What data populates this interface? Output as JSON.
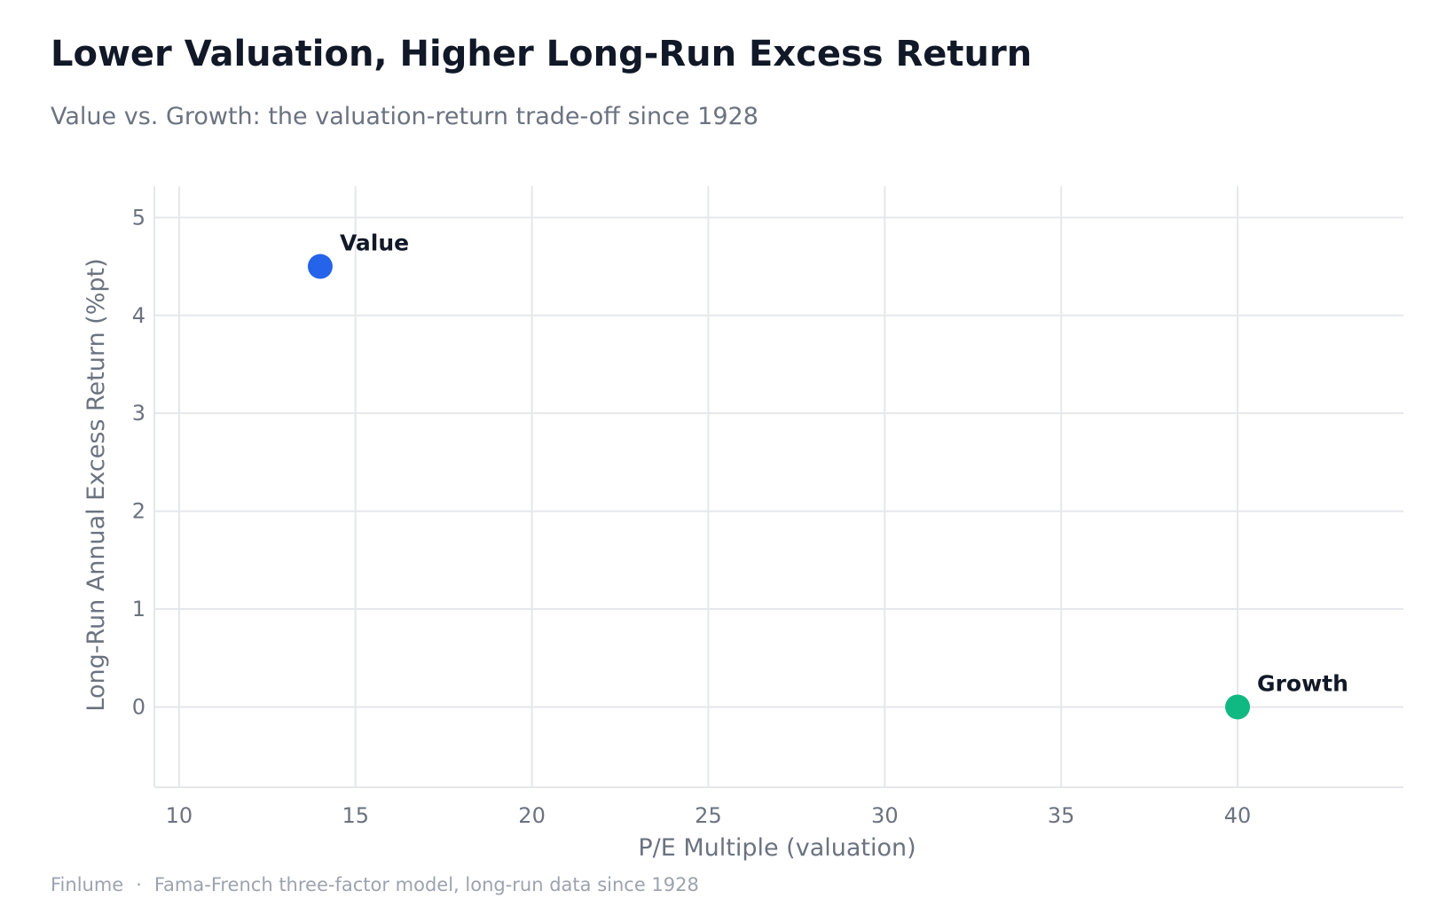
{
  "header": {
    "title": "Lower Valuation, Higher Long-Run Excess Return",
    "subtitle": "Value vs. Growth: the valuation-return trade-off since 1928"
  },
  "footer": {
    "brand": "Finlume",
    "separator": "·",
    "source": "Fama-French three-factor model, long-run data since 1928"
  },
  "colors": {
    "value": "#2563eb",
    "growth": "#10b981",
    "grid": "#e5e7eb",
    "axis": "#e5e7eb",
    "tick_text": "#6b7280",
    "label_text": "#111827"
  },
  "chart_data": {
    "type": "scatter",
    "title": "",
    "xlabel": "P/E Multiple (valuation)",
    "ylabel": "Long-Run Annual Excess Return (%pt)",
    "xlim": [
      9.3,
      44.7
    ],
    "ylim": [
      -0.82,
      5.32
    ],
    "x_ticks": [
      10,
      15,
      20,
      25,
      30,
      35,
      40
    ],
    "y_ticks": [
      0,
      1,
      2,
      3,
      4,
      5
    ],
    "grid": true,
    "legend": "none",
    "points": [
      {
        "label": "Value",
        "x": 14,
        "y": 4.5,
        "color": "#2563eb"
      },
      {
        "label": "Growth",
        "x": 40,
        "y": 0,
        "color": "#10b981"
      }
    ]
  }
}
